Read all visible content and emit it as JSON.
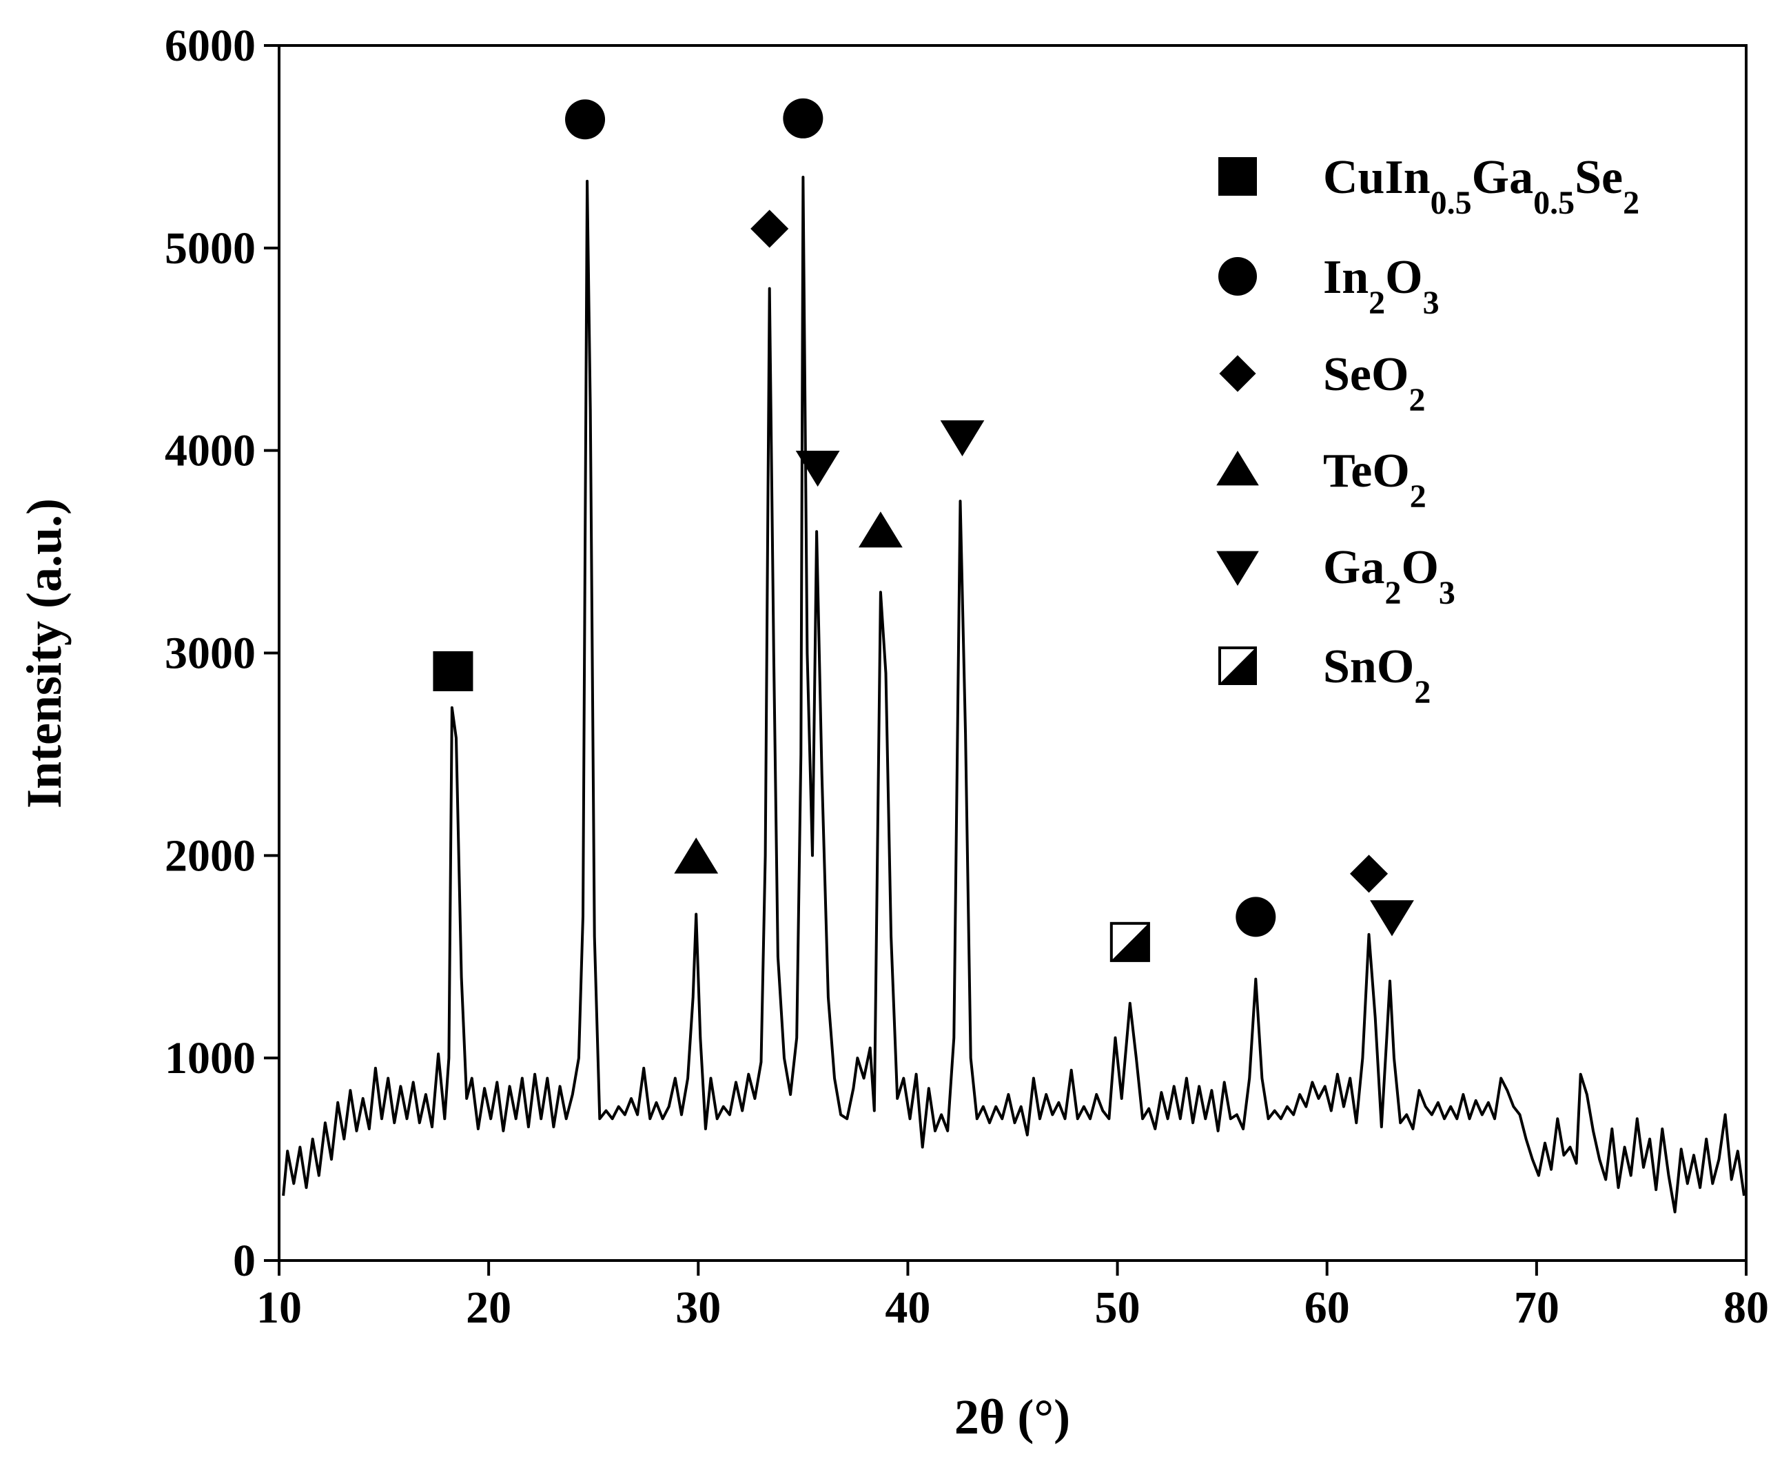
{
  "chart_data": {
    "type": "line",
    "xlabel": "2θ (°)",
    "ylabel": "Intensity (a.u.)",
    "xlim": [
      10,
      80
    ],
    "ylim": [
      0,
      6000
    ],
    "xticks": [
      10,
      20,
      30,
      40,
      50,
      60,
      70,
      80
    ],
    "yticks": [
      0,
      1000,
      2000,
      3000,
      4000,
      5000,
      6000
    ],
    "color": "#000000",
    "x": [
      10.2,
      10.4,
      10.7,
      11.0,
      11.3,
      11.6,
      11.9,
      12.2,
      12.5,
      12.8,
      13.1,
      13.4,
      13.7,
      14.0,
      14.3,
      14.6,
      14.9,
      15.2,
      15.5,
      15.8,
      16.1,
      16.4,
      16.7,
      17.0,
      17.3,
      17.6,
      17.9,
      18.1,
      18.25,
      18.45,
      18.7,
      18.95,
      19.2,
      19.5,
      19.8,
      20.1,
      20.4,
      20.7,
      21.0,
      21.3,
      21.6,
      21.9,
      22.2,
      22.5,
      22.8,
      23.1,
      23.4,
      23.7,
      24.0,
      24.3,
      24.5,
      24.7,
      24.85,
      25.05,
      25.3,
      25.6,
      25.9,
      26.2,
      26.5,
      26.8,
      27.1,
      27.4,
      27.7,
      28.0,
      28.3,
      28.6,
      28.9,
      29.2,
      29.5,
      29.75,
      29.9,
      30.1,
      30.35,
      30.6,
      30.9,
      31.2,
      31.5,
      31.8,
      32.1,
      32.4,
      32.7,
      33.0,
      33.2,
      33.4,
      33.6,
      33.8,
      34.1,
      34.4,
      34.7,
      34.9,
      35.0,
      35.2,
      35.45,
      35.65,
      35.9,
      36.2,
      36.5,
      36.8,
      37.1,
      37.4,
      37.6,
      37.9,
      38.2,
      38.4,
      38.7,
      38.95,
      39.2,
      39.5,
      39.8,
      40.1,
      40.4,
      40.7,
      41.0,
      41.3,
      41.6,
      41.9,
      42.2,
      42.5,
      42.75,
      43.0,
      43.3,
      43.6,
      43.9,
      44.2,
      44.5,
      44.8,
      45.1,
      45.4,
      45.7,
      46.0,
      46.3,
      46.6,
      46.9,
      47.2,
      47.5,
      47.8,
      48.1,
      48.4,
      48.7,
      49.0,
      49.3,
      49.6,
      49.9,
      50.2,
      50.6,
      50.9,
      51.2,
      51.5,
      51.8,
      52.1,
      52.4,
      52.7,
      53.0,
      53.3,
      53.6,
      53.9,
      54.2,
      54.5,
      54.8,
      55.1,
      55.4,
      55.7,
      56.0,
      56.3,
      56.6,
      56.9,
      57.2,
      57.5,
      57.8,
      58.1,
      58.4,
      58.7,
      59.0,
      59.3,
      59.6,
      59.9,
      60.2,
      60.5,
      60.8,
      61.1,
      61.4,
      61.7,
      62.0,
      62.3,
      62.6,
      62.85,
      63.0,
      63.2,
      63.5,
      63.8,
      64.1,
      64.4,
      64.7,
      65.0,
      65.3,
      65.6,
      65.9,
      66.2,
      66.5,
      66.8,
      67.1,
      67.4,
      67.7,
      68.0,
      68.3,
      68.6,
      68.9,
      69.2,
      69.5,
      69.8,
      70.1,
      70.4,
      70.7,
      71.0,
      71.3,
      71.6,
      71.9,
      72.1,
      72.4,
      72.7,
      73.0,
      73.3,
      73.6,
      73.9,
      74.2,
      74.5,
      74.8,
      75.1,
      75.4,
      75.7,
      76.0,
      76.3,
      76.6,
      76.9,
      77.2,
      77.5,
      77.8,
      78.1,
      78.4,
      78.7,
      79.0,
      79.3,
      79.6,
      79.9
    ],
    "values": [
      320,
      540,
      380,
      560,
      360,
      600,
      420,
      680,
      500,
      780,
      600,
      840,
      640,
      800,
      650,
      950,
      700,
      900,
      680,
      860,
      700,
      880,
      680,
      820,
      660,
      1020,
      700,
      1000,
      2730,
      2580,
      1400,
      800,
      900,
      650,
      850,
      700,
      880,
      640,
      860,
      700,
      900,
      660,
      920,
      700,
      900,
      660,
      860,
      700,
      820,
      1000,
      1700,
      5330,
      4200,
      1600,
      700,
      740,
      700,
      760,
      720,
      800,
      720,
      950,
      700,
      780,
      700,
      760,
      900,
      720,
      900,
      1300,
      1710,
      1100,
      650,
      900,
      700,
      760,
      720,
      880,
      740,
      920,
      800,
      980,
      2000,
      4800,
      3000,
      1500,
      1000,
      820,
      1100,
      2500,
      5350,
      3000,
      2000,
      3600,
      2400,
      1300,
      900,
      720,
      700,
      850,
      1000,
      900,
      1050,
      740,
      3300,
      2900,
      1600,
      800,
      900,
      700,
      920,
      560,
      850,
      640,
      720,
      640,
      1100,
      3750,
      2600,
      1000,
      700,
      760,
      680,
      760,
      700,
      820,
      680,
      760,
      620,
      900,
      700,
      820,
      720,
      780,
      700,
      940,
      700,
      760,
      700,
      820,
      740,
      700,
      1100,
      800,
      1270,
      1000,
      700,
      750,
      650,
      830,
      700,
      860,
      700,
      900,
      680,
      860,
      700,
      840,
      640,
      880,
      700,
      720,
      650,
      900,
      1390,
      900,
      700,
      740,
      700,
      760,
      720,
      820,
      760,
      880,
      800,
      860,
      740,
      920,
      760,
      900,
      680,
      1000,
      1610,
      1200,
      660,
      1100,
      1380,
      1000,
      680,
      720,
      650,
      840,
      760,
      720,
      780,
      700,
      760,
      700,
      820,
      700,
      790,
      720,
      780,
      700,
      900,
      840,
      760,
      720,
      600,
      500,
      420,
      580,
      450,
      700,
      520,
      560,
      480,
      920,
      820,
      640,
      500,
      400,
      650,
      360,
      560,
      420,
      700,
      460,
      600,
      350,
      650,
      420,
      240,
      550,
      380,
      520,
      360,
      600,
      380,
      500,
      720,
      400,
      540,
      320
    ],
    "series": [
      {
        "name": "CuIn0.5Ga0.5Se2",
        "marker": "square",
        "color": "#000000",
        "x": [
          18.3
        ],
        "values": [
          2910
        ]
      },
      {
        "name": "In2O3",
        "marker": "circle",
        "color": "#000000",
        "x": [
          24.6,
          35.0,
          56.6
        ],
        "values": [
          5635,
          5640,
          1697
        ]
      },
      {
        "name": "SeO2",
        "marker": "diamond",
        "color": "#000000",
        "x": [
          33.4,
          62.0
        ],
        "values": [
          5095,
          1910
        ]
      },
      {
        "name": "TeO2",
        "marker": "triangle-up",
        "color": "#000000",
        "x": [
          29.9,
          38.7
        ],
        "values": [
          1990,
          3600
        ]
      },
      {
        "name": "Ga2O3",
        "marker": "triangle-down",
        "color": "#000000",
        "x": [
          35.7,
          42.6,
          63.1
        ],
        "values": [
          3920,
          4070,
          1700
        ]
      },
      {
        "name": "SnO2",
        "marker": "half-square",
        "color": "#000000",
        "x": [
          50.6
        ],
        "values": [
          1573
        ]
      }
    ]
  }
}
